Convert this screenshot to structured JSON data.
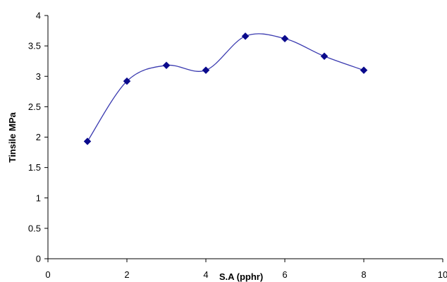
{
  "chart_data": {
    "type": "line",
    "title": "",
    "xlabel": "S.A (pphr)",
    "ylabel": "Tinsile MPa",
    "xlim": [
      0,
      10
    ],
    "ylim": [
      0,
      4
    ],
    "x_ticks": [
      0,
      2,
      4,
      6,
      8,
      10
    ],
    "y_ticks": [
      0,
      0.5,
      1,
      1.5,
      2,
      2.5,
      3,
      3.5,
      4
    ],
    "x_tick_labels": [
      "0",
      "2",
      "4",
      "6",
      "8",
      "10"
    ],
    "y_tick_labels": [
      "0",
      "0.5",
      "1",
      "1.5",
      "2",
      "2.5",
      "3",
      "3.5",
      "4"
    ],
    "smooth": true,
    "marker": "diamond",
    "grid": false,
    "legend": false,
    "series": [
      {
        "x": [
          1,
          2,
          3,
          4,
          5,
          6,
          7,
          8
        ],
        "values": [
          1.93,
          2.92,
          3.18,
          3.1,
          3.66,
          3.62,
          3.33,
          3.1
        ],
        "color": "#0a0a8c",
        "line_color": "#3b3bb0"
      }
    ]
  }
}
